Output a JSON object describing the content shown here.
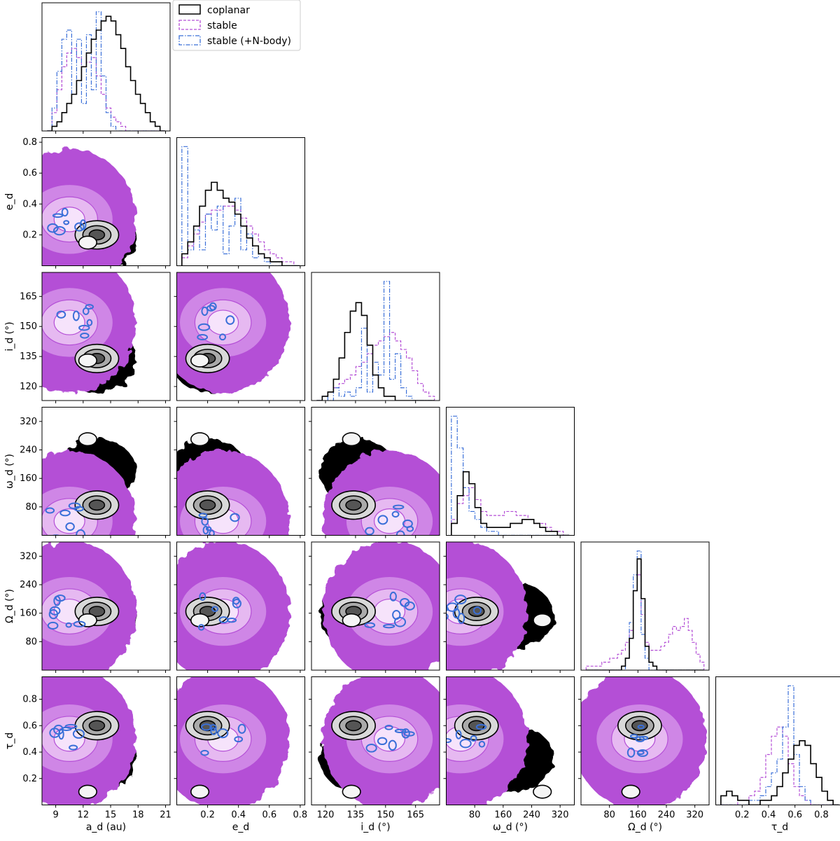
{
  "chart_data": {
    "type": "corner",
    "grid": false,
    "legend_position": "top-left (beside first histogram)",
    "colors": {
      "coplanar": "#000000",
      "stable": "#b44fd6",
      "nbody": "#3a6fd8",
      "stable_fill": "#b44fd6"
    },
    "legend": [
      {
        "id": "coplanar",
        "label": "coplanar",
        "style": "solid"
      },
      {
        "id": "stable",
        "label": "stable",
        "style": "dashed"
      },
      {
        "id": "nbody",
        "label": "stable (+N-body)",
        "style": "dashdot"
      }
    ],
    "params": [
      {
        "name": "a_d",
        "label": "a_d (au)",
        "range": [
          7.5,
          21.5
        ],
        "ticks": [
          "9",
          "12",
          "15",
          "18",
          "21"
        ],
        "tick_values": [
          9,
          12,
          15,
          18,
          21
        ]
      },
      {
        "name": "e_d",
        "label": "e_d",
        "range": [
          0.0,
          0.83
        ],
        "ticks": [
          "0.2",
          "0.4",
          "0.6",
          "0.8"
        ],
        "tick_values": [
          0.2,
          0.4,
          0.6,
          0.8
        ]
      },
      {
        "name": "i_d",
        "label": "i_d (°)",
        "range": [
          113,
          177
        ],
        "ticks": [
          "120",
          "135",
          "150",
          "165"
        ],
        "tick_values": [
          120,
          135,
          150,
          165
        ]
      },
      {
        "name": "omega_d",
        "label": "ω_d (°)",
        "range": [
          0,
          360
        ],
        "ticks": [
          "80",
          "160",
          "240",
          "320"
        ],
        "tick_values": [
          80,
          160,
          240,
          320
        ]
      },
      {
        "name": "Omega_d",
        "label": "Ω_d (°)",
        "range": [
          0,
          360
        ],
        "ticks": [
          "80",
          "160",
          "240",
          "320"
        ],
        "tick_values": [
          80,
          160,
          240,
          320
        ]
      },
      {
        "name": "tau_d",
        "label": "τ_d",
        "range": [
          0.0,
          0.97
        ],
        "ticks": [
          "0.2",
          "0.4",
          "0.6",
          "0.8"
        ],
        "tick_values": [
          0.2,
          0.4,
          0.6,
          0.8
        ]
      }
    ],
    "marginals": [
      {
        "param": "a_d",
        "coplanar": [
          0,
          1,
          2,
          4,
          6,
          8,
          11,
          14,
          17,
          20,
          22,
          24,
          25,
          24,
          21,
          18,
          14,
          11,
          8,
          6,
          4,
          2,
          1,
          0
        ],
        "stable": [
          0,
          4,
          9,
          14,
          17,
          18,
          16,
          14,
          15,
          16,
          12,
          8,
          5,
          3,
          2,
          1,
          0,
          0,
          0,
          0,
          0,
          0,
          0,
          0
        ],
        "nbody": [
          0,
          5,
          13,
          20,
          22,
          8,
          20,
          6,
          21,
          9,
          26,
          12,
          4,
          1,
          0,
          0,
          0,
          0,
          0,
          0,
          0,
          0,
          0,
          0
        ]
      },
      {
        "param": "e_d",
        "coplanar": [
          3,
          6,
          10,
          15,
          19,
          21,
          19,
          17,
          16,
          13,
          10,
          7,
          5,
          3,
          2,
          1,
          1,
          0,
          0,
          0
        ],
        "stable": [
          2,
          5,
          8,
          11,
          13,
          14,
          14,
          15,
          15,
          14,
          12,
          10,
          8,
          6,
          4,
          3,
          2,
          1,
          1,
          0
        ],
        "nbody": [
          30,
          4,
          9,
          4,
          13,
          9,
          15,
          3,
          10,
          17,
          4,
          8,
          2,
          3,
          1,
          0,
          0,
          0,
          0,
          0
        ]
      },
      {
        "param": "i_d",
        "coplanar": [
          0,
          1,
          2,
          5,
          10,
          16,
          21,
          23,
          20,
          13,
          6,
          3,
          1,
          1,
          0,
          0,
          0,
          0,
          0,
          0,
          0
        ],
        "stable": [
          0,
          1,
          2,
          3,
          4,
          5,
          6,
          8,
          9,
          11,
          13,
          14,
          15,
          16,
          14,
          12,
          10,
          7,
          4,
          2,
          1
        ],
        "nbody": [
          0,
          1,
          0,
          3,
          1,
          2,
          1,
          3,
          17,
          2,
          9,
          6,
          28,
          5,
          11,
          3,
          1,
          0,
          0,
          0,
          0
        ]
      },
      {
        "param": "omega_d",
        "coplanar": [
          3,
          10,
          16,
          13,
          7,
          3,
          2,
          2,
          2,
          2,
          3,
          3,
          4,
          4,
          3,
          2,
          1,
          1,
          0,
          0
        ],
        "stable": [
          4,
          8,
          10,
          12,
          9,
          6,
          5,
          5,
          5,
          6,
          6,
          5,
          5,
          4,
          3,
          3,
          2,
          1,
          1,
          0
        ],
        "nbody": [
          30,
          22,
          12,
          6,
          4,
          2,
          1,
          1,
          0,
          0,
          0,
          0,
          0,
          0,
          0,
          0,
          0,
          0,
          0,
          0
        ]
      },
      {
        "param": "Omega_d",
        "coplanar": [
          0,
          0,
          0,
          0,
          0,
          0,
          0,
          0,
          0,
          1,
          3,
          8,
          20,
          28,
          18,
          6,
          2,
          1,
          0,
          0,
          0,
          0,
          0,
          0,
          0,
          0,
          0,
          0,
          0,
          0
        ],
        "stable": [
          1,
          1,
          1,
          1,
          2,
          2,
          3,
          3,
          4,
          5,
          7,
          10,
          20,
          24,
          14,
          7,
          5,
          5,
          5,
          6,
          7,
          9,
          11,
          10,
          11,
          13,
          10,
          7,
          4,
          2
        ],
        "nbody": [
          0,
          0,
          0,
          0,
          0,
          0,
          0,
          0,
          0,
          0,
          3,
          12,
          24,
          30,
          9,
          3,
          0,
          0,
          0,
          0,
          0,
          0,
          0,
          0,
          0,
          0,
          0,
          0,
          0,
          0
        ]
      },
      {
        "param": "tau_d",
        "coplanar": [
          2,
          3,
          2,
          1,
          1,
          0,
          0,
          1,
          1,
          2,
          4,
          7,
          10,
          13,
          14,
          13,
          9,
          6,
          3,
          1,
          0
        ],
        "stable": [
          0,
          0,
          0,
          1,
          1,
          2,
          3,
          6,
          11,
          15,
          17,
          15,
          9,
          4,
          2,
          1,
          0,
          0,
          0,
          0,
          0
        ],
        "nbody": [
          0,
          0,
          0,
          0,
          0,
          1,
          1,
          2,
          4,
          7,
          10,
          17,
          26,
          11,
          4,
          1,
          0,
          0,
          0,
          0,
          0
        ]
      }
    ],
    "coplanar_modes": {
      "a_d": [
        13.5,
        12.5
      ],
      "e_d": [
        0.2,
        0.15
      ],
      "i_d": [
        134,
        133
      ],
      "omega_d": [
        85,
        270
      ],
      "Omega_d": [
        165,
        140
      ],
      "tau_d": [
        0.6,
        0.1
      ]
    },
    "stable_modes": {
      "a_d": 10.5,
      "e_d": 0.3,
      "i_d": 152,
      "omega_d": 40,
      "Omega_d": 165,
      "tau_d": 0.5
    }
  }
}
